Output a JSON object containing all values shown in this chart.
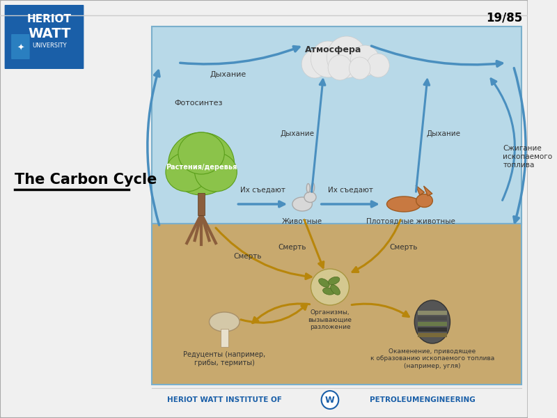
{
  "title": "The Carbon Cycle",
  "slide_number": "19/85",
  "bg_color": "#f0f0f0",
  "main_text": "The Carbon Cycle",
  "heriot_watt_blue": "#1a5fa8",
  "diagram": {
    "sky_color": "#b8d9e8",
    "ground_color": "#c8a96e",
    "atmosphere_label": "Атмосфера",
    "photosynthesis_label": "Фотосинтез",
    "respiration_label": "Дыхание",
    "plants_label": "Растения/деревья",
    "animals_label": "Животные",
    "carnivores_label": "Плотоядные животные",
    "eaten1_label": "Их съедают",
    "eaten2_label": "Их съедают",
    "death_label": "Смерть",
    "decomposers_label": "Организмы,\nвызывающие\nразложение",
    "reducers_label": "Редуценты (например,\nгрибы, термиты)",
    "fossil_combustion_label": "Сжигание\nископаемого\nтоплива",
    "fossilization_label": "Окаменение, приводящее\nк образованию ископаемого топлива\n(например, угля)",
    "arrow_blue": "#4a8fbf",
    "arrow_gold": "#b8860b"
  }
}
